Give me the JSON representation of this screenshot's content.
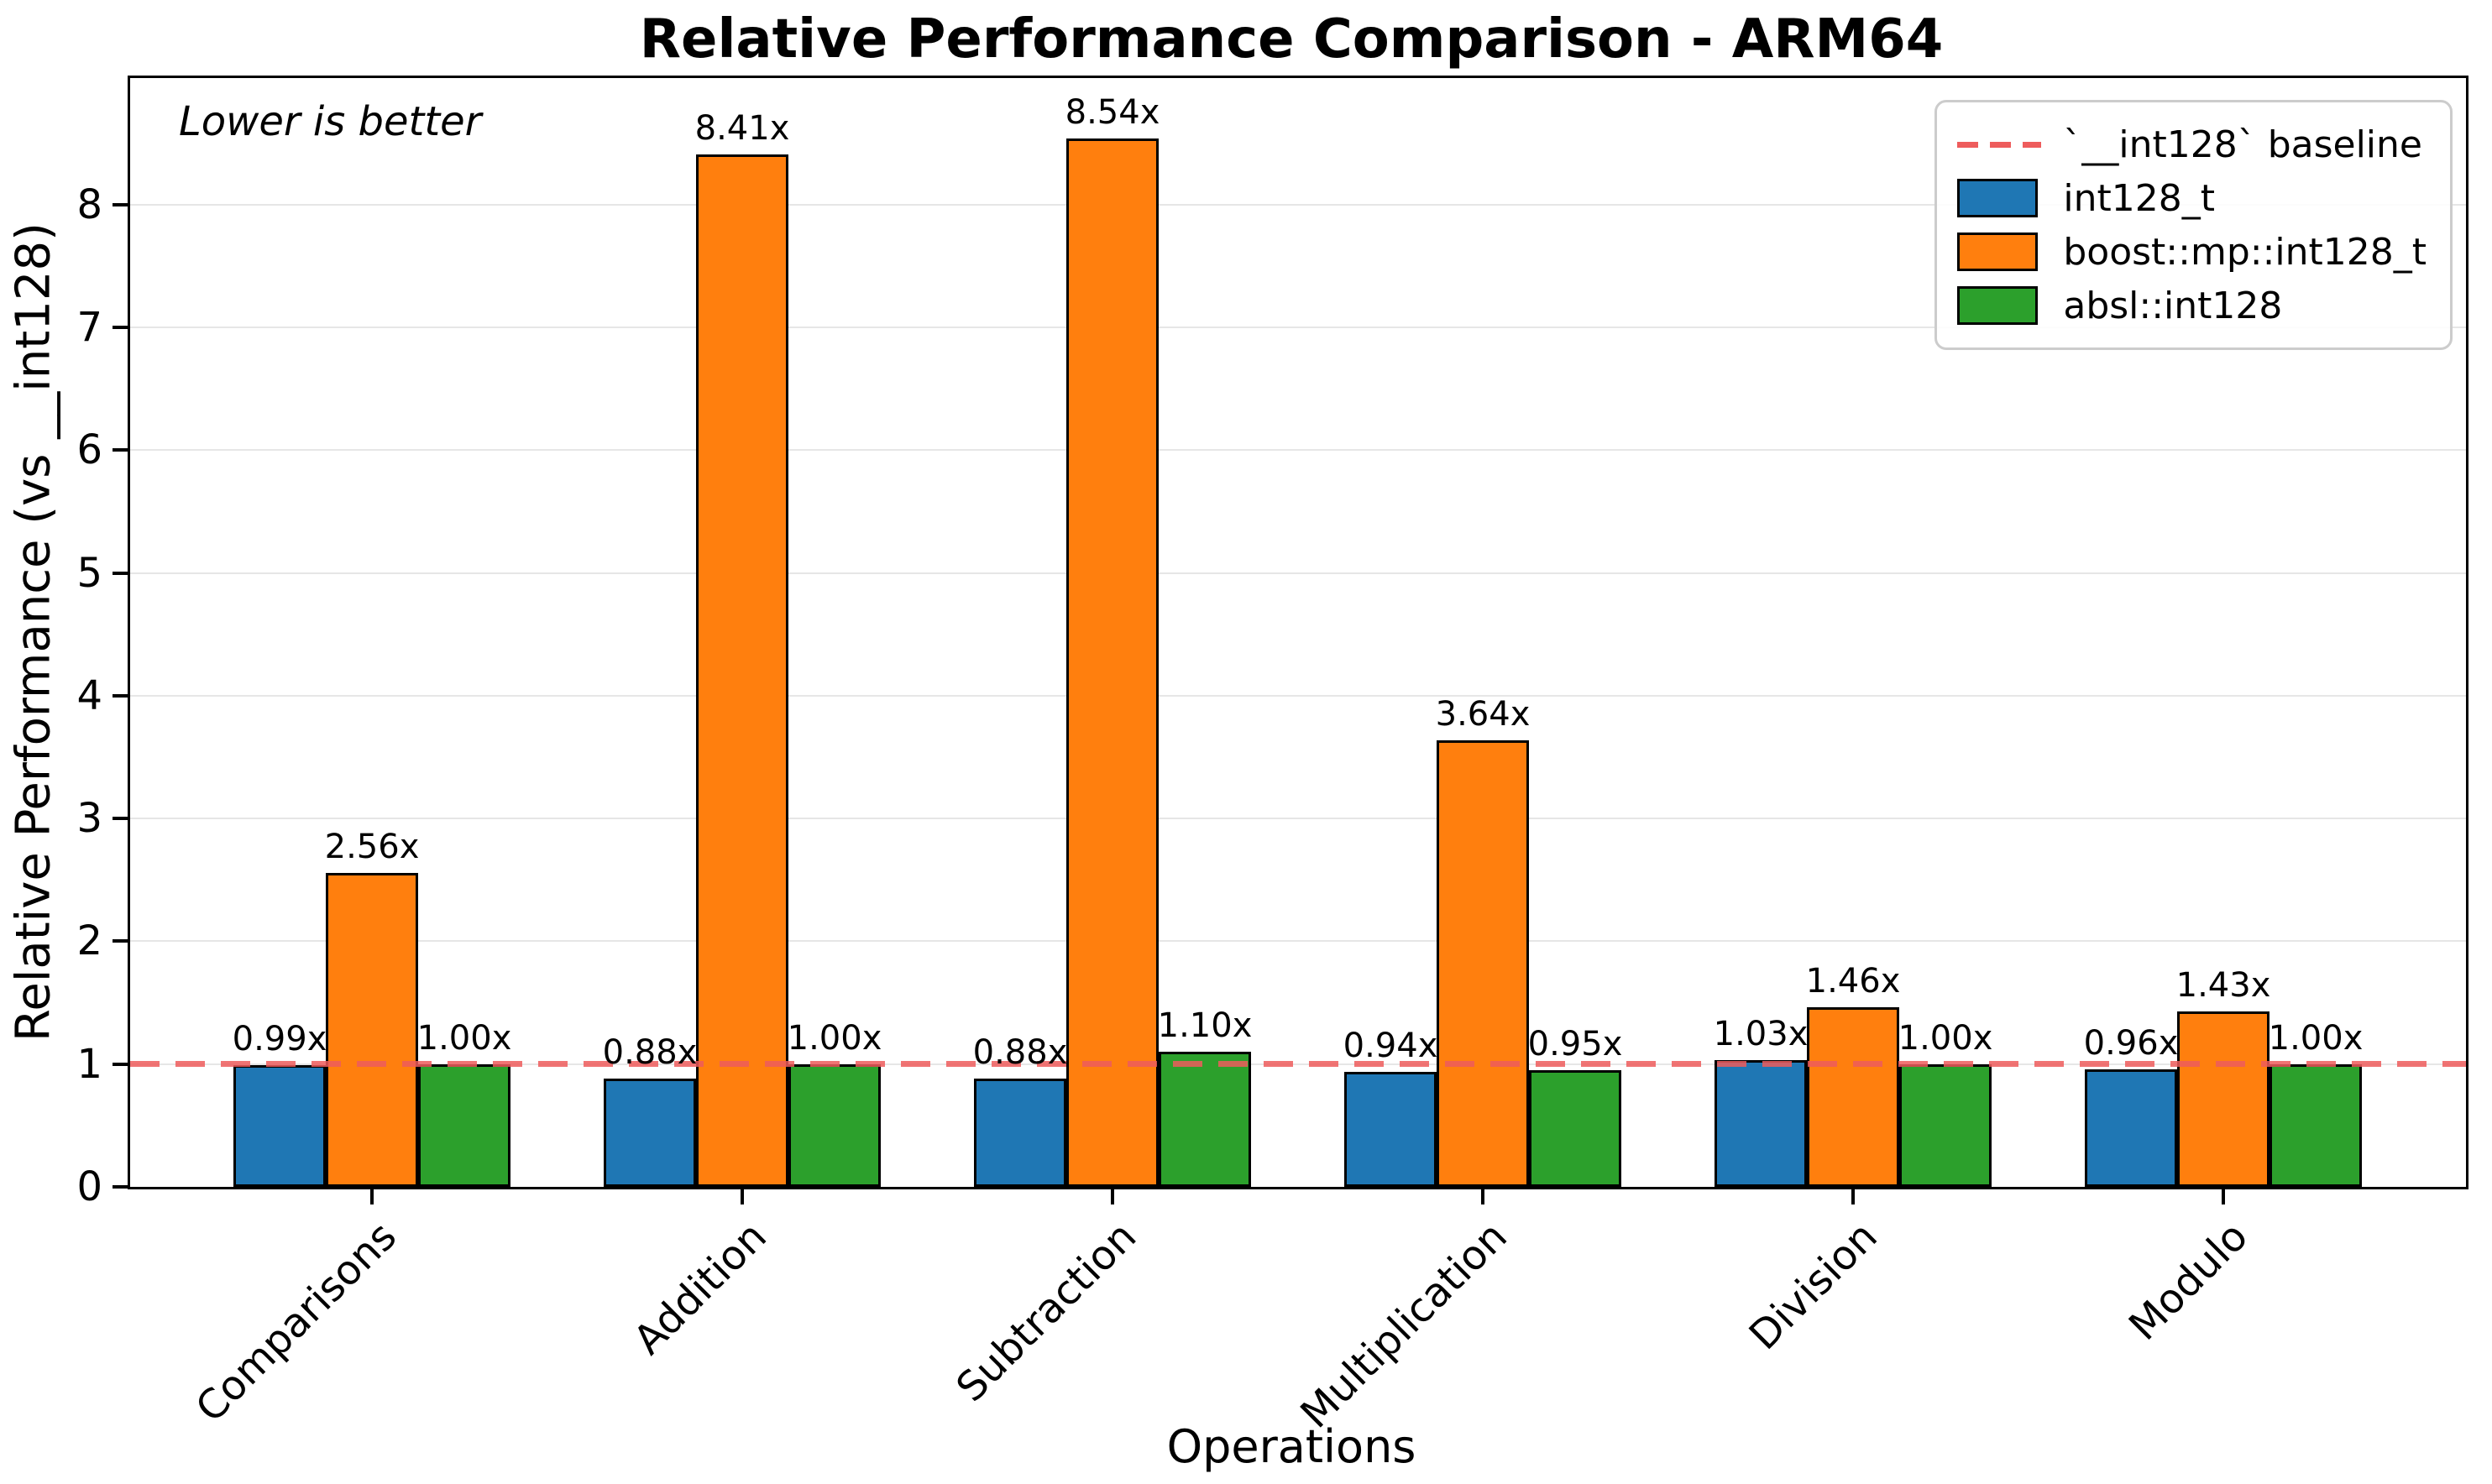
{
  "annotation": "Lower is better",
  "chart_data": {
    "type": "bar",
    "title": "Relative Performance Comparison - ARM64",
    "xlabel": "Operations",
    "ylabel": "Relative Performance (vs __int128)",
    "categories": [
      "Comparisons",
      "Addition",
      "Subtraction",
      "Multiplication",
      "Division",
      "Modulo"
    ],
    "series": [
      {
        "name": "int128_t",
        "color": "#1f77b4",
        "values": [
          0.99,
          0.88,
          0.88,
          0.94,
          1.03,
          0.96
        ]
      },
      {
        "name": "boost::mp::int128_t",
        "color": "#ff7f0e",
        "values": [
          2.56,
          8.41,
          8.54,
          3.64,
          1.46,
          1.43
        ]
      },
      {
        "name": "absl::int128",
        "color": "#2ca02c",
        "values": [
          1.0,
          1.0,
          1.1,
          0.95,
          1.0,
          1.0
        ]
      }
    ],
    "value_label_decimals": 2,
    "value_label_suffix": "x",
    "baseline": {
      "value": 1.0,
      "label": "`__int128` baseline",
      "color": "#ee5c5c"
    },
    "yticks": [
      0,
      1,
      2,
      3,
      4,
      5,
      6,
      7,
      8
    ],
    "ylim": [
      0,
      9.03
    ],
    "grid": true,
    "grid_color": "#e6e6e6",
    "bar_edge_color": "#000000",
    "legend_position": "upper right"
  }
}
